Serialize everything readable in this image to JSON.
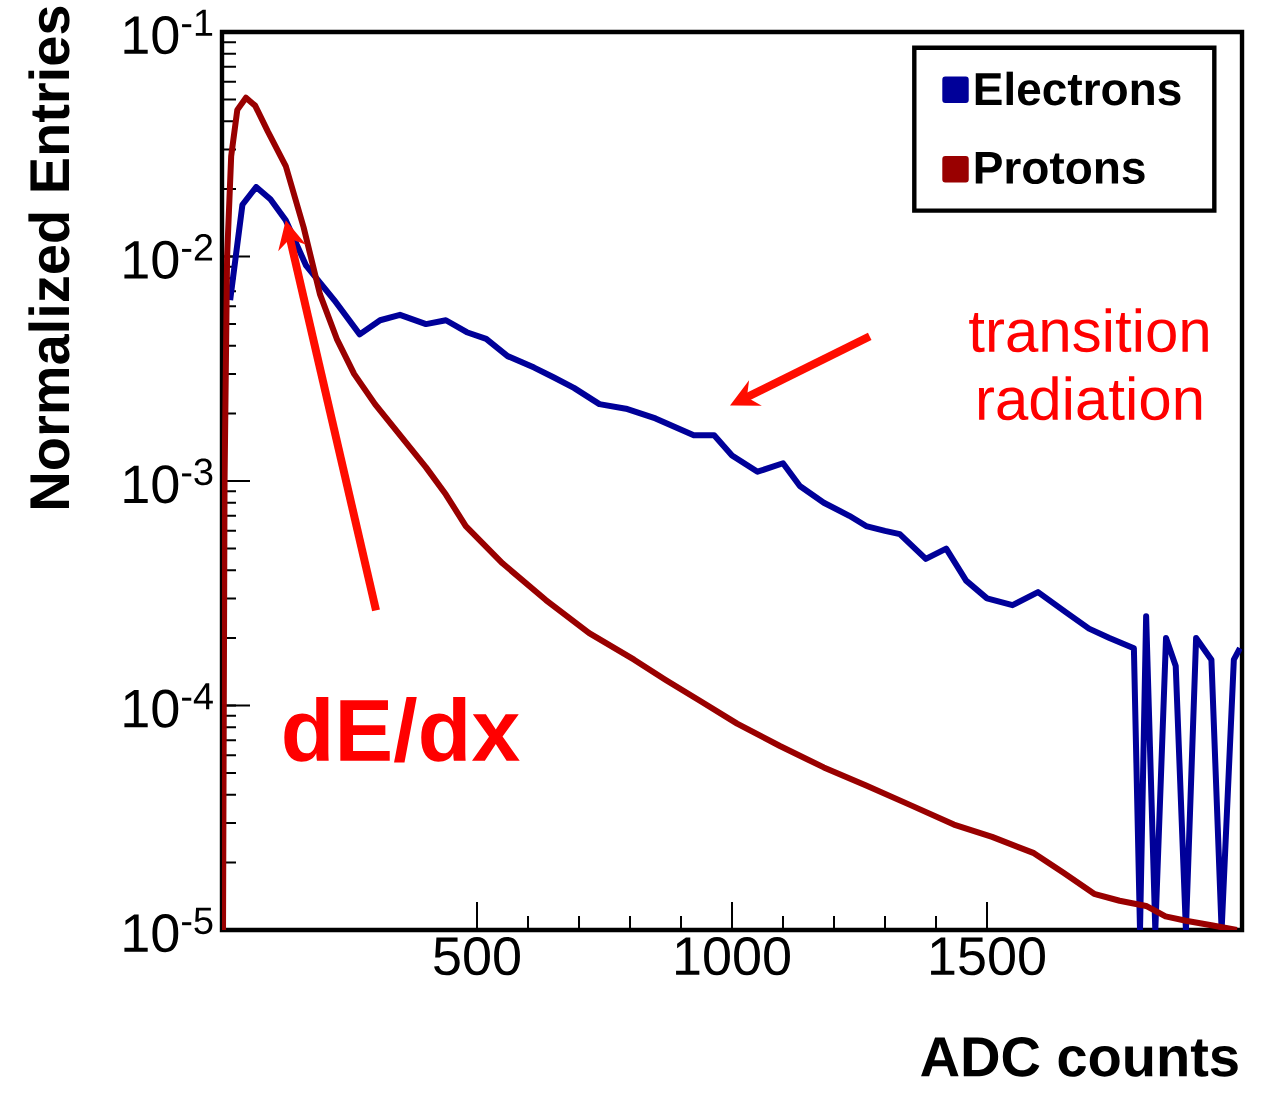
{
  "chart_data": {
    "type": "line",
    "xlabel": "ADC counts",
    "ylabel": "Normalized Entries",
    "log": "y",
    "xlim": [
      0,
      2000
    ],
    "xticks": [
      500,
      1000,
      1500
    ],
    "ylim": [
      1e-05,
      0.1
    ],
    "yticks": [
      {
        "value": 1e-05,
        "label": "10$^{-5}$"
      },
      {
        "value": 0.0001,
        "label": "10$^{-4}$"
      },
      {
        "value": 0.001,
        "label": "10$^{-3}$"
      },
      {
        "value": 0.01,
        "label": "10$^{-2}$"
      },
      {
        "value": 0.1,
        "label": "10$^{-1}$"
      }
    ],
    "legend": "top right",
    "grid": false,
    "series": [
      {
        "name": "Electrons",
        "color": "#000099",
        "x": [
          16,
          40,
          67,
          95,
          125,
          165,
          220,
          270,
          310,
          349,
          400,
          439,
          480,
          518,
          560,
          612,
          650,
          690,
          740,
          792,
          850,
          925,
          965,
          1000,
          1050,
          1100,
          1133,
          1180,
          1230,
          1263,
          1300,
          1329,
          1380,
          1420,
          1459,
          1500,
          1550,
          1600,
          1655,
          1700,
          1740,
          1788,
          1800,
          1812,
          1830,
          1851,
          1870,
          1890,
          1910,
          1940,
          1960,
          1984,
          1996
        ],
        "values": [
          0.0064,
          0.017,
          0.0204,
          0.018,
          0.0145,
          0.0091,
          0.0064,
          0.0045,
          0.0052,
          0.0055,
          0.005,
          0.0052,
          0.0046,
          0.0043,
          0.0036,
          0.0032,
          0.0029,
          0.0026,
          0.0022,
          0.0021,
          0.0019,
          0.0016,
          0.0016,
          0.0013,
          0.0011,
          0.0012,
          0.00095,
          0.0008,
          0.0007,
          0.00063,
          0.0006,
          0.00058,
          0.00045,
          0.0005,
          0.00036,
          0.0003,
          0.00028,
          0.00032,
          0.00026,
          0.00022,
          0.0002,
          0.00018,
          1e-05,
          0.00025,
          1e-05,
          0.0002,
          0.00015,
          1e-05,
          0.0002,
          0.00016,
          1e-05,
          0.00016,
          0.00018
        ]
      },
      {
        "name": "Protons",
        "color": "#990000",
        "x": [
          2,
          5,
          10,
          18,
          30,
          47,
          65,
          90,
          125,
          160,
          192,
          225,
          259,
          300,
          349,
          400,
          439,
          478,
          550,
          635,
          720,
          808,
          870,
          937,
          1010,
          1094,
          1180,
          1263,
          1350,
          1435,
          1510,
          1592,
          1650,
          1710,
          1760,
          1812,
          1850,
          1890,
          1940,
          1990
        ],
        "values": [
          1e-05,
          0.001,
          0.01,
          0.028,
          0.045,
          0.051,
          0.047,
          0.036,
          0.0253,
          0.0135,
          0.0068,
          0.0043,
          0.003,
          0.0022,
          0.0016,
          0.00115,
          0.00087,
          0.00063,
          0.00043,
          0.000295,
          0.00021,
          0.00016,
          0.00013,
          0.000105,
          8.3e-05,
          6.6e-05,
          5.3e-05,
          4.4e-05,
          3.6e-05,
          2.95e-05,
          2.6e-05,
          2.2e-05,
          1.8e-05,
          1.45e-05,
          1.35e-05,
          1.28e-05,
          1.15e-05,
          1.1e-05,
          1.05e-05,
          1e-05
        ]
      }
    ],
    "annotations": [
      {
        "text": "dE/dx",
        "x": 125,
        "y": 0.0145
      },
      "transition radiation"
    ]
  }
}
